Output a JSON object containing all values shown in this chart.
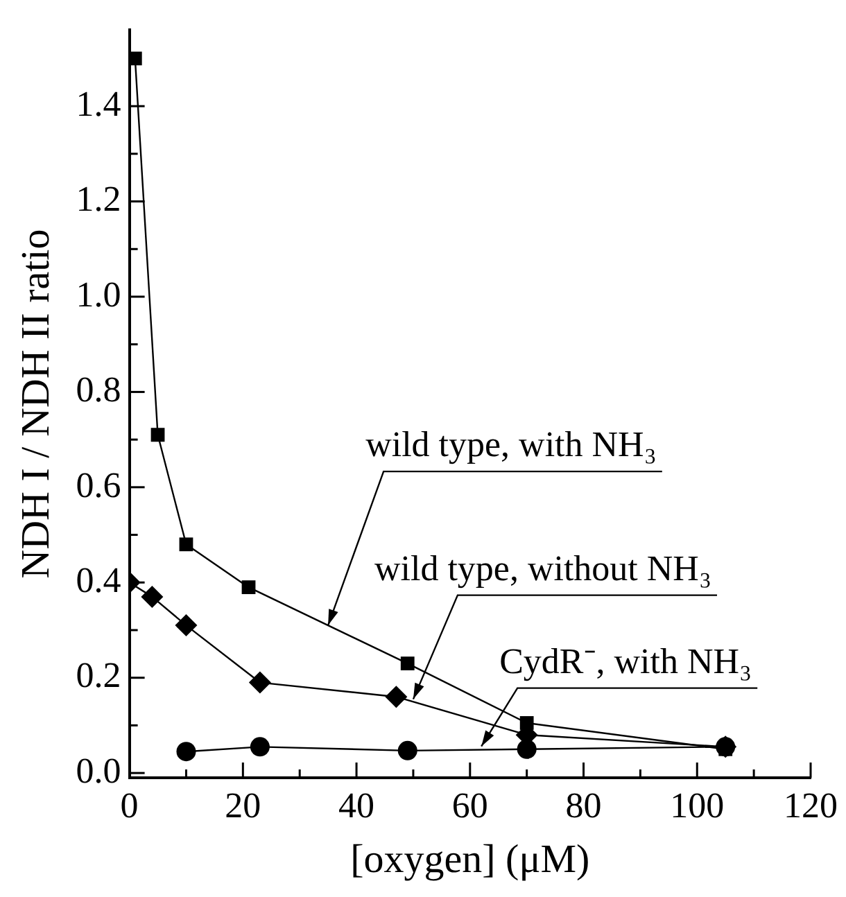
{
  "chart_data": {
    "type": "line",
    "xlabel": "[oxygen] (μM)",
    "ylabel": "NDH I / NDH II ratio",
    "xlim": [
      0,
      120
    ],
    "ylim": [
      -0.01,
      1.56
    ],
    "xticks": [
      0,
      {
        "value": 10,
        "label": null
      },
      20,
      {
        "value": 30,
        "label": null
      },
      40,
      {
        "value": 50,
        "label": null
      },
      60,
      {
        "value": 70,
        "label": null
      },
      80,
      {
        "value": 90,
        "label": null
      },
      100,
      {
        "value": 110,
        "label": null
      },
      120
    ],
    "yticks": [
      {
        "value": 0,
        "label": "0.0"
      },
      {
        "value": 0.1,
        "label": null
      },
      {
        "value": 0.2,
        "label": "0.2"
      },
      {
        "value": 0.3,
        "label": null
      },
      {
        "value": 0.4,
        "label": "0.4"
      },
      {
        "value": 0.5,
        "label": null
      },
      {
        "value": 0.6,
        "label": "0.6"
      },
      {
        "value": 0.7,
        "label": null
      },
      {
        "value": 0.8,
        "label": "0.8"
      },
      {
        "value": 0.9,
        "label": null
      },
      {
        "value": 1.0,
        "label": "1.0"
      },
      {
        "value": 1.1,
        "label": null
      },
      {
        "value": 1.2,
        "label": "1.2"
      },
      {
        "value": 1.3,
        "label": null
      },
      {
        "value": 1.4,
        "label": "1.4"
      },
      {
        "value": 1.5,
        "label": null
      }
    ],
    "grid": false,
    "legend": false,
    "line_style": "solid",
    "series": [
      {
        "color": "#000000",
        "marker": "square",
        "x": [
          1,
          5,
          10,
          21,
          49,
          70,
          105
        ],
        "values": [
          1.5,
          0.71,
          0.48,
          0.39,
          0.23,
          0.105,
          0.05
        ]
      },
      {
        "color": "#000000",
        "marker": "diamond",
        "x": [
          0,
          4,
          10,
          23,
          47,
          70,
          105
        ],
        "values": [
          0.4,
          0.37,
          0.31,
          0.19,
          0.16,
          0.08,
          0.055
        ]
      },
      {
        "color": "#000000",
        "marker": "circle",
        "x": [
          10,
          23,
          49,
          70,
          105
        ],
        "values": [
          0.045,
          0.055,
          0.047,
          0.05,
          0.055
        ]
      }
    ],
    "annotations": [
      {
        "text": "wild type, with NH₃",
        "x": 35,
        "y": 0.31
      },
      {
        "text": "wild type, without NH₃",
        "x": 50,
        "y": 0.155
      },
      {
        "text": "CydR⁻, with NH₃",
        "x": 62,
        "y": 0.056
      }
    ]
  }
}
